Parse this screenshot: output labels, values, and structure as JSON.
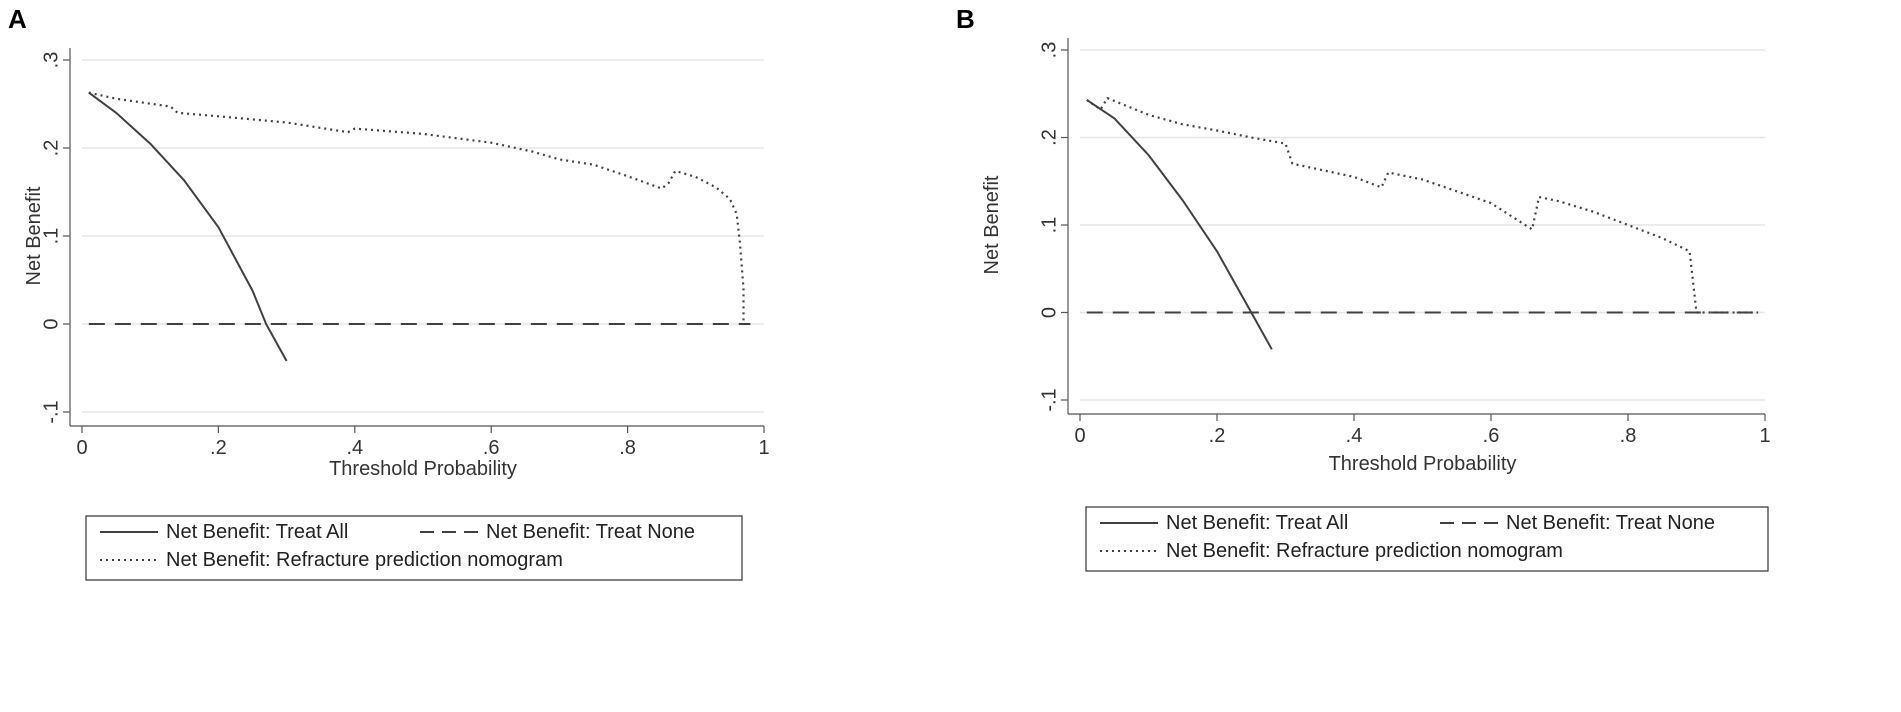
{
  "colors": {
    "grid": "#e6e6e6",
    "axis": "#555555",
    "series": "#404040"
  },
  "chart_data": [
    {
      "type": "line",
      "panel": "A",
      "xlabel": "Threshold Probability",
      "ylabel": "Net Benefit",
      "xlim": [
        0,
        1
      ],
      "ylim": [
        -0.1,
        0.3
      ],
      "xticks": [
        0,
        0.2,
        0.4,
        0.6,
        0.8,
        1
      ],
      "xtick_labels": [
        "0",
        ".2",
        ".4",
        ".6",
        ".8",
        "1"
      ],
      "yticks": [
        -0.1,
        0,
        0.1,
        0.2,
        0.3
      ],
      "ytick_labels": [
        "-.1",
        "0",
        ".1",
        ".2",
        ".3"
      ],
      "grid": true,
      "legend": [
        "Net Benefit: Treat All",
        "Net Benefit: Treat None",
        "Net Benefit: Refracture prediction nomogram"
      ],
      "series": [
        {
          "name": "Net Benefit: Treat All",
          "style": "solid",
          "x": [
            0.01,
            0.05,
            0.1,
            0.15,
            0.2,
            0.25,
            0.27,
            0.3
          ],
          "y": [
            0.263,
            0.24,
            0.205,
            0.163,
            0.11,
            0.038,
            0.0,
            -0.042
          ]
        },
        {
          "name": "Net Benefit: Treat None",
          "style": "dashed",
          "x": [
            0.01,
            0.98
          ],
          "y": [
            0,
            0
          ]
        },
        {
          "name": "Net Benefit: Refracture prediction nomogram",
          "style": "dotted",
          "x": [
            0.01,
            0.05,
            0.13,
            0.14,
            0.2,
            0.3,
            0.39,
            0.4,
            0.5,
            0.6,
            0.66,
            0.7,
            0.75,
            0.8,
            0.85,
            0.86,
            0.87,
            0.9,
            0.93,
            0.95,
            0.96,
            0.965,
            0.97,
            0.97
          ],
          "y": [
            0.263,
            0.256,
            0.247,
            0.24,
            0.236,
            0.229,
            0.218,
            0.222,
            0.216,
            0.206,
            0.196,
            0.187,
            0.181,
            0.168,
            0.154,
            0.16,
            0.174,
            0.167,
            0.155,
            0.142,
            0.125,
            0.09,
            0.04,
            0.0
          ]
        }
      ]
    },
    {
      "type": "line",
      "panel": "B",
      "xlabel": "Threshold Probability",
      "ylabel": "Net Benefit",
      "xlim": [
        0,
        1
      ],
      "ylim": [
        -0.1,
        0.3
      ],
      "xticks": [
        0,
        0.2,
        0.4,
        0.6,
        0.8,
        1
      ],
      "xtick_labels": [
        "0",
        ".2",
        ".4",
        ".6",
        ".8",
        "1"
      ],
      "yticks": [
        -0.1,
        0,
        0.1,
        0.2,
        0.3
      ],
      "ytick_labels": [
        "-.1",
        "0",
        ".1",
        ".2",
        ".3"
      ],
      "grid": true,
      "legend": [
        "Net Benefit: Treat All",
        "Net Benefit: Treat None",
        "Net Benefit: Refracture prediction nomogram"
      ],
      "series": [
        {
          "name": "Net Benefit: Treat All",
          "style": "solid",
          "x": [
            0.01,
            0.05,
            0.1,
            0.15,
            0.2,
            0.25,
            0.28
          ],
          "y": [
            0.243,
            0.222,
            0.18,
            0.128,
            0.07,
            0.0,
            -0.042
          ]
        },
        {
          "name": "Net Benefit: Treat None",
          "style": "dashed",
          "x": [
            0.01,
            0.99
          ],
          "y": [
            0,
            0
          ]
        },
        {
          "name": "Net Benefit: Refracture prediction nomogram",
          "style": "dotted",
          "x": [
            0.01,
            0.03,
            0.04,
            0.1,
            0.15,
            0.2,
            0.25,
            0.3,
            0.31,
            0.4,
            0.44,
            0.45,
            0.5,
            0.6,
            0.66,
            0.67,
            0.7,
            0.75,
            0.8,
            0.85,
            0.89,
            0.9,
            0.99
          ],
          "y": [
            0.243,
            0.232,
            0.245,
            0.226,
            0.215,
            0.208,
            0.2,
            0.193,
            0.17,
            0.155,
            0.143,
            0.16,
            0.152,
            0.125,
            0.095,
            0.132,
            0.127,
            0.115,
            0.1,
            0.085,
            0.07,
            0.0,
            0.0
          ]
        }
      ]
    }
  ]
}
